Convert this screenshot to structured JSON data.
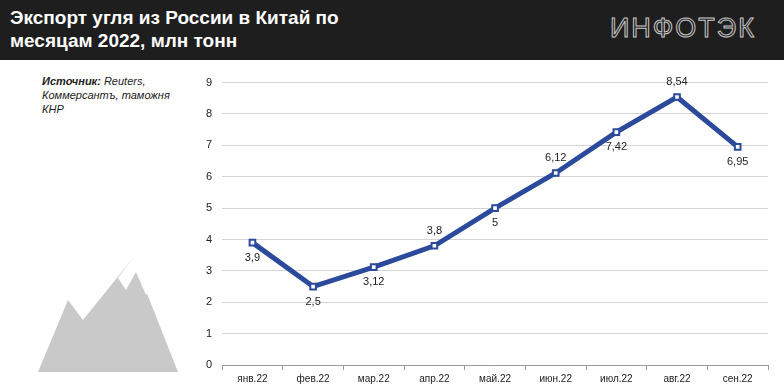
{
  "chart_data": {
    "type": "line",
    "title": "Экспорт угля из России в Китай по месяцам 2022, млн тонн",
    "logo": "ИНФОТЭК",
    "source_label": "Источник:",
    "source": "Reuters, Коммерсантъ, таможня КНР",
    "categories": [
      "янв.22",
      "фев.22",
      "мар.22",
      "апр.22",
      "май.22",
      "июн.22",
      "июл.22",
      "авг.22",
      "сен.22"
    ],
    "values": [
      3.9,
      2.5,
      3.12,
      3.8,
      5,
      6.12,
      7.42,
      8.54,
      6.95
    ],
    "value_labels": [
      "3,9",
      "2,5",
      "3,12",
      "3,8",
      "5",
      "6,12",
      "7,42",
      "8,54",
      "6,95"
    ],
    "color": "#2c4a9c",
    "marker": "square",
    "ylim": [
      0,
      9
    ],
    "yticks": [
      0,
      1,
      2,
      3,
      4,
      5,
      6,
      7,
      8,
      9
    ],
    "grid": true,
    "data_labels": true
  }
}
